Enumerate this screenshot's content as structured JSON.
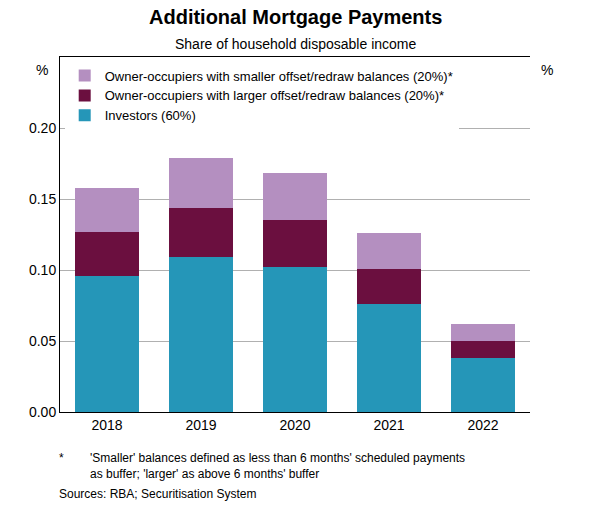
{
  "chart_data": {
    "type": "bar",
    "stacked": true,
    "title": "Additional Mortgage Payments",
    "subtitle": "Share of household disposable income",
    "ylabel": "%",
    "categories": [
      "2018",
      "2019",
      "2020",
      "2021",
      "2022"
    ],
    "series": [
      {
        "name": "Investors (60%)",
        "color": "#2596b8",
        "values": [
          0.096,
          0.109,
          0.102,
          0.076,
          0.038
        ]
      },
      {
        "name": "Owner-occupiers with larger offset/redraw balances (20%)*",
        "color": "#6b0f3f",
        "values": [
          0.031,
          0.035,
          0.033,
          0.025,
          0.012
        ]
      },
      {
        "name": "Owner-occupiers with smaller offset/redraw balances (20%)*",
        "color": "#b48fc0",
        "values": [
          0.031,
          0.035,
          0.033,
          0.025,
          0.012
        ]
      }
    ],
    "ylim": [
      0,
      0.25
    ],
    "yticks": [
      {
        "value": 0,
        "label": "0.00"
      },
      {
        "value": 0.05,
        "label": "0.05"
      },
      {
        "value": 0.1,
        "label": "0.10"
      },
      {
        "value": 0.15,
        "label": "0.15"
      },
      {
        "value": 0.2,
        "label": "0.20"
      }
    ],
    "grid": true,
    "legend": "top left",
    "notes": {
      "marker": "*",
      "lines": [
        "'Smaller' balances defined as less than 6 months' scheduled payments",
        "as buffer; 'larger' as above 6 months' buffer"
      ]
    },
    "sources": "Sources: RBA; Securitisation System"
  }
}
